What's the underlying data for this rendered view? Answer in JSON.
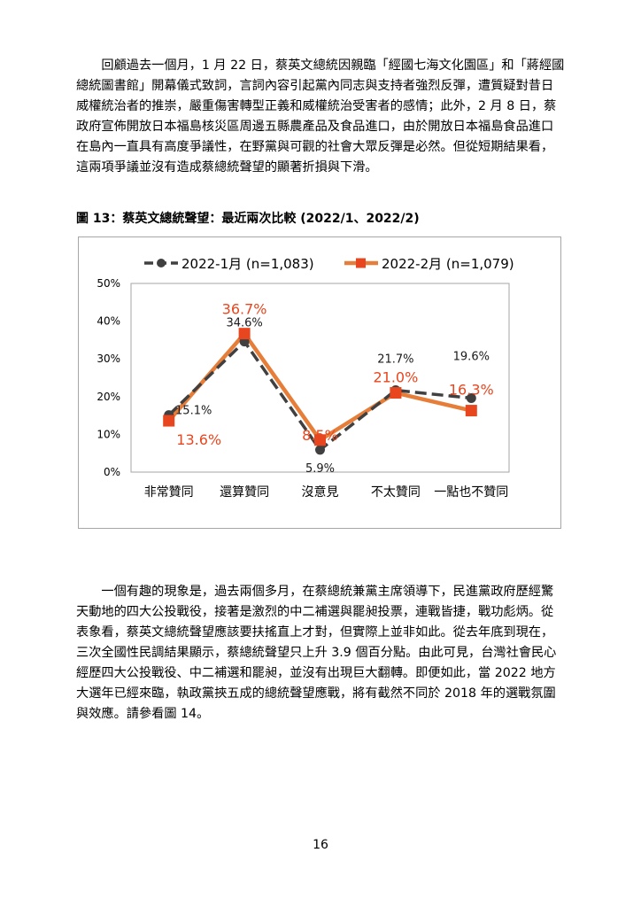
{
  "paragraph1": [
    "　　回顧過去一個月，1 月 22 日，蔡英文總統因親臨「經國七海文化園區」和「蔣經國",
    "總統圖書館」開幕儀式致詞，言詞內容引起黨內同志與支持者強烈反彈，遭質疑對昔日",
    "威權統治者的推崇，嚴重傷害轉型正義和威權統治受害者的感情；此外，2 月 8 日，蔡",
    "政府宣佈開放日本福島核災區周邊五縣農產品及食品進口，由於開放日本福島食品進口",
    "在島內一直具有高度爭議性，在野黨與可觀的社會大眾反彈是必然。但從短期結果看，",
    "這兩項爭議並沒有造成蔡總統聲望的顯著折損與下滑。"
  ],
  "figure_title": "圖 13：蔡英文總統聲望：最近兩次比較 (2022/1、2022/2)",
  "chart_data": {
    "type": "line",
    "categories": [
      "非常贊同",
      "還算贊同",
      "沒意見",
      "不太贊同",
      "一點也不贊同"
    ],
    "series": [
      {
        "name": "2022-1月 (n=1,083)",
        "values": [
          15.1,
          34.6,
          5.9,
          21.7,
          19.6
        ],
        "labels": [
          "15.1%",
          "34.6%",
          "5.9%",
          "21.7%",
          "19.6%"
        ],
        "color": "#404040",
        "style": "dashed",
        "marker": "circle"
      },
      {
        "name": "2022-2月 (n=1,079)",
        "values": [
          13.6,
          36.7,
          8.5,
          21.0,
          16.3
        ],
        "labels": [
          "13.6%",
          "36.7%",
          "8.5%",
          "21.0%",
          "16.3%"
        ],
        "color": "#e67e3a",
        "label_color": "#e8461e",
        "style": "solid",
        "marker": "square"
      }
    ],
    "yticks": [
      "0%",
      "10%",
      "20%",
      "30%",
      "40%",
      "50%"
    ],
    "ylim": [
      0,
      50
    ],
    "grid": false,
    "legend": "top"
  },
  "paragraph2": [
    "　　一個有趣的現象是，過去兩個多月，在蔡總統兼黨主席領導下，民進黨政府歷經驚",
    "天動地的四大公投戰役，接著是激烈的中二補選與罷昶投票，連戰皆捷，戰功彪炳。從",
    "表象看，蔡英文總統聲望應該要扶搖直上才對，但實際上並非如此。從去年底到現在，",
    "三次全國性民調結果顯示，蔡總統聲望只上升 3.9 個百分點。由此可見，台灣社會民心",
    "經歷四大公投戰役、中二補選和罷昶，並沒有出現巨大翻轉。即便如此，當 2022 地方",
    "大選年已經來臨，執政黨挾五成的總統聲望應戰，將有截然不同於 2018 年的選戰氛圍",
    "與效應。請參看圖 14。"
  ],
  "page_number": "16"
}
